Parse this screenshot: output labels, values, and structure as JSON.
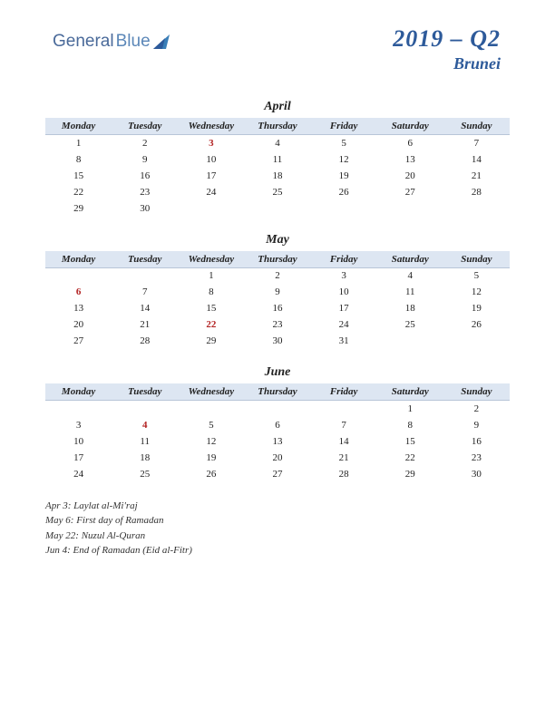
{
  "logo": {
    "text1": "General",
    "text2": "Blue"
  },
  "header": {
    "yearQuarter": "2019 – Q2",
    "country": "Brunei"
  },
  "dayHeaders": [
    "Monday",
    "Tuesday",
    "Wednesday",
    "Thursday",
    "Friday",
    "Saturday",
    "Sunday"
  ],
  "colors": {
    "headerBlue": "#2d5a9a",
    "dayHeaderBg": "#dde6f2",
    "holiday": "#b22222",
    "logoShape": "#3a7fb8"
  },
  "months": [
    {
      "name": "April",
      "weeks": [
        [
          "1",
          "2",
          "3",
          "4",
          "5",
          "6",
          "7"
        ],
        [
          "8",
          "9",
          "10",
          "11",
          "12",
          "13",
          "14"
        ],
        [
          "15",
          "16",
          "17",
          "18",
          "19",
          "20",
          "21"
        ],
        [
          "22",
          "23",
          "24",
          "25",
          "26",
          "27",
          "28"
        ],
        [
          "29",
          "30",
          "",
          "",
          "",
          "",
          ""
        ]
      ],
      "holidays": [
        "3"
      ]
    },
    {
      "name": "May",
      "weeks": [
        [
          "",
          "",
          "1",
          "2",
          "3",
          "4",
          "5"
        ],
        [
          "6",
          "7",
          "8",
          "9",
          "10",
          "11",
          "12"
        ],
        [
          "13",
          "14",
          "15",
          "16",
          "17",
          "18",
          "19"
        ],
        [
          "20",
          "21",
          "22",
          "23",
          "24",
          "25",
          "26"
        ],
        [
          "27",
          "28",
          "29",
          "30",
          "31",
          "",
          ""
        ]
      ],
      "holidays": [
        "6",
        "22"
      ]
    },
    {
      "name": "June",
      "weeks": [
        [
          "",
          "",
          "",
          "",
          "",
          "1",
          "2"
        ],
        [
          "3",
          "4",
          "5",
          "6",
          "7",
          "8",
          "9"
        ],
        [
          "10",
          "11",
          "12",
          "13",
          "14",
          "15",
          "16"
        ],
        [
          "17",
          "18",
          "19",
          "20",
          "21",
          "22",
          "23"
        ],
        [
          "24",
          "25",
          "26",
          "27",
          "28",
          "29",
          "30"
        ]
      ],
      "holidays": [
        "4"
      ]
    }
  ],
  "holidayList": [
    "Apr 3: Laylat al-Mi'raj",
    "May 6: First day of Ramadan",
    "May 22: Nuzul Al-Quran",
    "Jun 4: End of Ramadan (Eid al-Fitr)"
  ]
}
